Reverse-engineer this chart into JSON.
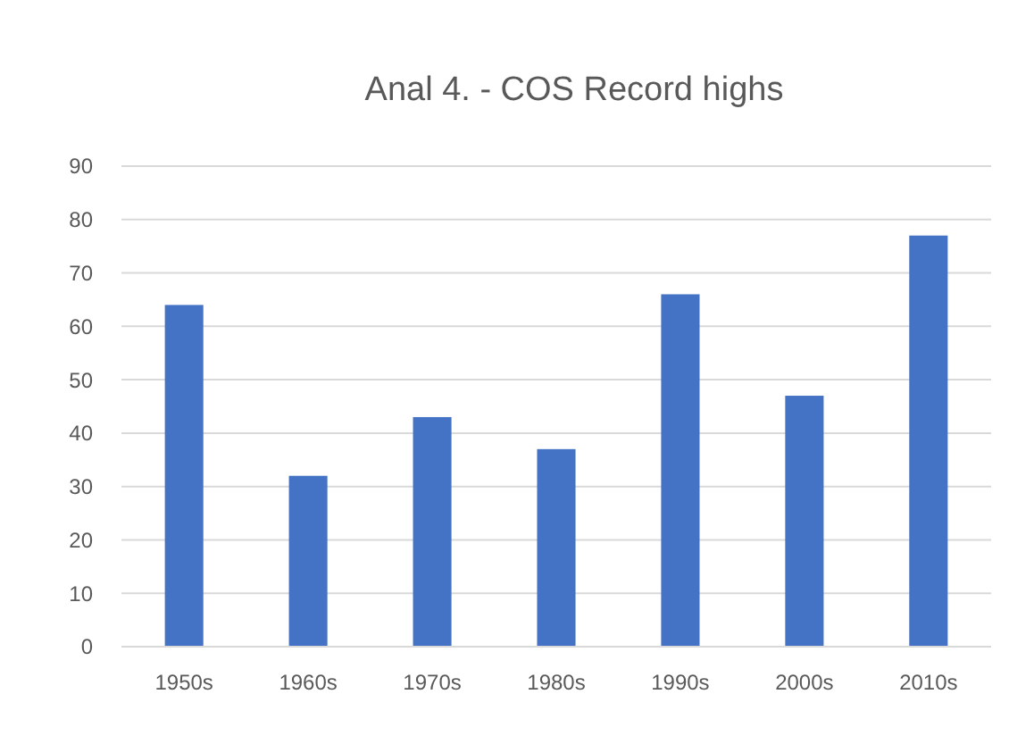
{
  "chart_data": {
    "type": "bar",
    "title": "Anal 4. - COS Record highs",
    "categories": [
      "1950s",
      "1960s",
      "1970s",
      "1980s",
      "1990s",
      "2000s",
      "2010s"
    ],
    "values": [
      64,
      32,
      43,
      37,
      66,
      47,
      77
    ],
    "color": "#4472c4",
    "ylim": [
      0,
      90
    ],
    "yticks": [
      0,
      10,
      20,
      30,
      40,
      50,
      60,
      70,
      80,
      90
    ],
    "grid": "y"
  }
}
